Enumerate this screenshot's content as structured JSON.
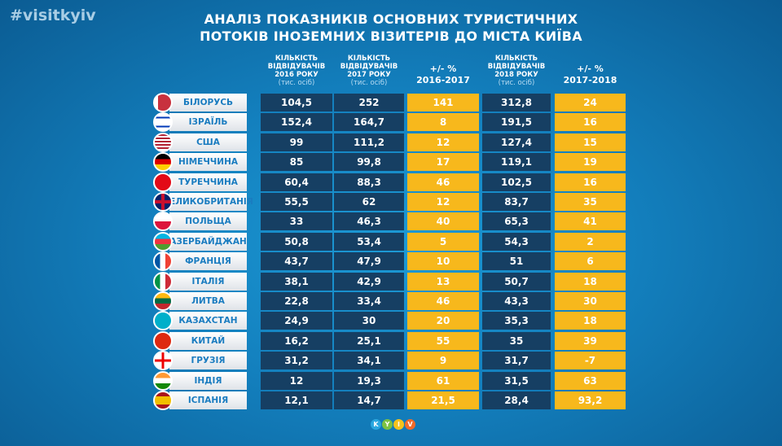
{
  "hashtag": "#visitkyiv",
  "title": {
    "line1": "АНАЛІЗ ПОКАЗНИКІВ ОСНОВНИХ ТУРИСТИЧНИХ",
    "line2": "ПОТОКІВ ІНОЗЕМНИХ ВІЗИТЕРІВ ДО МІСТА КИЇВА"
  },
  "headers": [
    {
      "l1": "КІЛЬКІСТЬ",
      "l2": "ВІДВІДУВАЧІВ",
      "l3": "2016 РОКУ",
      "sub": "(тис. осіб)"
    },
    {
      "l1": "КІЛЬКІСТЬ",
      "l2": "ВІДВІДУВАЧІВ",
      "l3": "2017 РОКУ",
      "sub": "(тис. осіб)"
    },
    {
      "l1": "+/- %",
      "l2": "2016-2017"
    },
    {
      "l1": "КІЛЬКІСТЬ",
      "l2": "ВІДВІДУВАЧІВ",
      "l3": "2018 РОКУ",
      "sub": "(тис. осіб)"
    },
    {
      "l1": "+/- %",
      "l2": "2017-2018"
    }
  ],
  "colors": {
    "dark_cell": "#163f63",
    "yellow_cell": "#f7b81c",
    "country_text": "#1a7cc0"
  },
  "rows": [
    {
      "country": "БІЛОРУСЬ",
      "flag": "belarus-flag-icon",
      "v": [
        "104,5",
        "252",
        "141",
        "312,8",
        "24"
      ]
    },
    {
      "country": "ІЗРАЇЛЬ",
      "flag": "israel-flag-icon",
      "v": [
        "152,4",
        "164,7",
        "8",
        "191,5",
        "16"
      ]
    },
    {
      "country": "США",
      "flag": "usa-flag-icon",
      "v": [
        "99",
        "111,2",
        "12",
        "127,4",
        "15"
      ]
    },
    {
      "country": "НІМЕЧЧИНА",
      "flag": "germany-flag-icon",
      "v": [
        "85",
        "99,8",
        "17",
        "119,1",
        "19"
      ]
    },
    {
      "country": "ТУРЕЧЧИНА",
      "flag": "turkey-flag-icon",
      "v": [
        "60,4",
        "88,3",
        "46",
        "102,5",
        "16"
      ]
    },
    {
      "country": "ВЕЛИКОБРИТАНІЯ",
      "flag": "uk-flag-icon",
      "v": [
        "55,5",
        "62",
        "12",
        "83,7",
        "35"
      ]
    },
    {
      "country": "ПОЛЬЩА",
      "flag": "poland-flag-icon",
      "v": [
        "33",
        "46,3",
        "40",
        "65,3",
        "41"
      ]
    },
    {
      "country": "АЗЕРБАЙДЖАН",
      "flag": "azerbaijan-flag-icon",
      "v": [
        "50,8",
        "53,4",
        "5",
        "54,3",
        "2"
      ]
    },
    {
      "country": "ФРАНЦІЯ",
      "flag": "france-flag-icon",
      "v": [
        "43,7",
        "47,9",
        "10",
        "51",
        "6"
      ]
    },
    {
      "country": "ІТАЛІЯ",
      "flag": "italy-flag-icon",
      "v": [
        "38,1",
        "42,9",
        "13",
        "50,7",
        "18"
      ]
    },
    {
      "country": "ЛИТВА",
      "flag": "lithuania-flag-icon",
      "v": [
        "22,8",
        "33,4",
        "46",
        "43,3",
        "30"
      ]
    },
    {
      "country": "КАЗАХСТАН",
      "flag": "kazakhstan-flag-icon",
      "v": [
        "24,9",
        "30",
        "20",
        "35,3",
        "18"
      ]
    },
    {
      "country": "КИТАЙ",
      "flag": "china-flag-icon",
      "v": [
        "16,2",
        "25,1",
        "55",
        "35",
        "39"
      ]
    },
    {
      "country": "ГРУЗІЯ",
      "flag": "georgia-flag-icon",
      "v": [
        "31,2",
        "34,1",
        "9",
        "31,7",
        "-7"
      ]
    },
    {
      "country": "ІНДІЯ",
      "flag": "india-flag-icon",
      "v": [
        "12",
        "19,3",
        "61",
        "31,5",
        "63"
      ]
    },
    {
      "country": "ІСПАНІЯ",
      "flag": "spain-flag-icon",
      "v": [
        "12,1",
        "14,7",
        "21,5",
        "28,4",
        "93,2"
      ]
    }
  ],
  "logo": {
    "letters": [
      "K",
      "Y",
      "I",
      "V"
    ],
    "colors": [
      "#2aa8e0",
      "#7cc242",
      "#f5c21b",
      "#f06a2a"
    ]
  }
}
